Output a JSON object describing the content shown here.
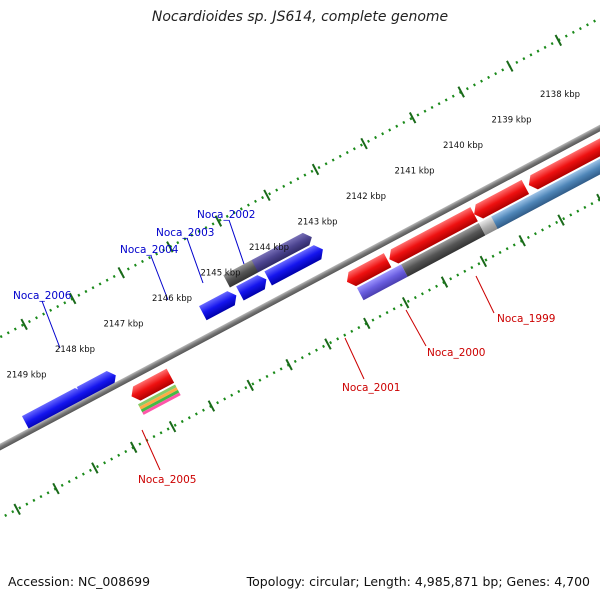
{
  "title": "Nocardioides sp. JS614, complete genome",
  "footer": {
    "accession": "Accession: NC_008699",
    "summary": "Topology: circular; Length: 4,985,871 bp; Genes: 4,700"
  },
  "colors": {
    "forward_label": "#0000cc",
    "reverse_label": "#cc0000",
    "backbone": "#888888",
    "tick": "#1a8a1a"
  },
  "kbp_labels": [
    "2138 kbp",
    "2139 kbp",
    "2140 kbp",
    "2141 kbp",
    "2142 kbp",
    "2143 kbp",
    "2144 kbp",
    "2145 kbp",
    "2146 kbp",
    "2147 kbp",
    "2148 kbp",
    "2149 kbp"
  ],
  "gene_labels": [
    {
      "name": "Noca_2002",
      "strand": "forward"
    },
    {
      "name": "Noca_2003",
      "strand": "forward"
    },
    {
      "name": "Noca_2004",
      "strand": "forward"
    },
    {
      "name": "Noca_2006",
      "strand": "forward"
    },
    {
      "name": "Noca_1999",
      "strand": "reverse"
    },
    {
      "name": "Noca_2000",
      "strand": "reverse"
    },
    {
      "name": "Noca_2001",
      "strand": "reverse"
    },
    {
      "name": "Noca_2005",
      "strand": "reverse"
    }
  ]
}
